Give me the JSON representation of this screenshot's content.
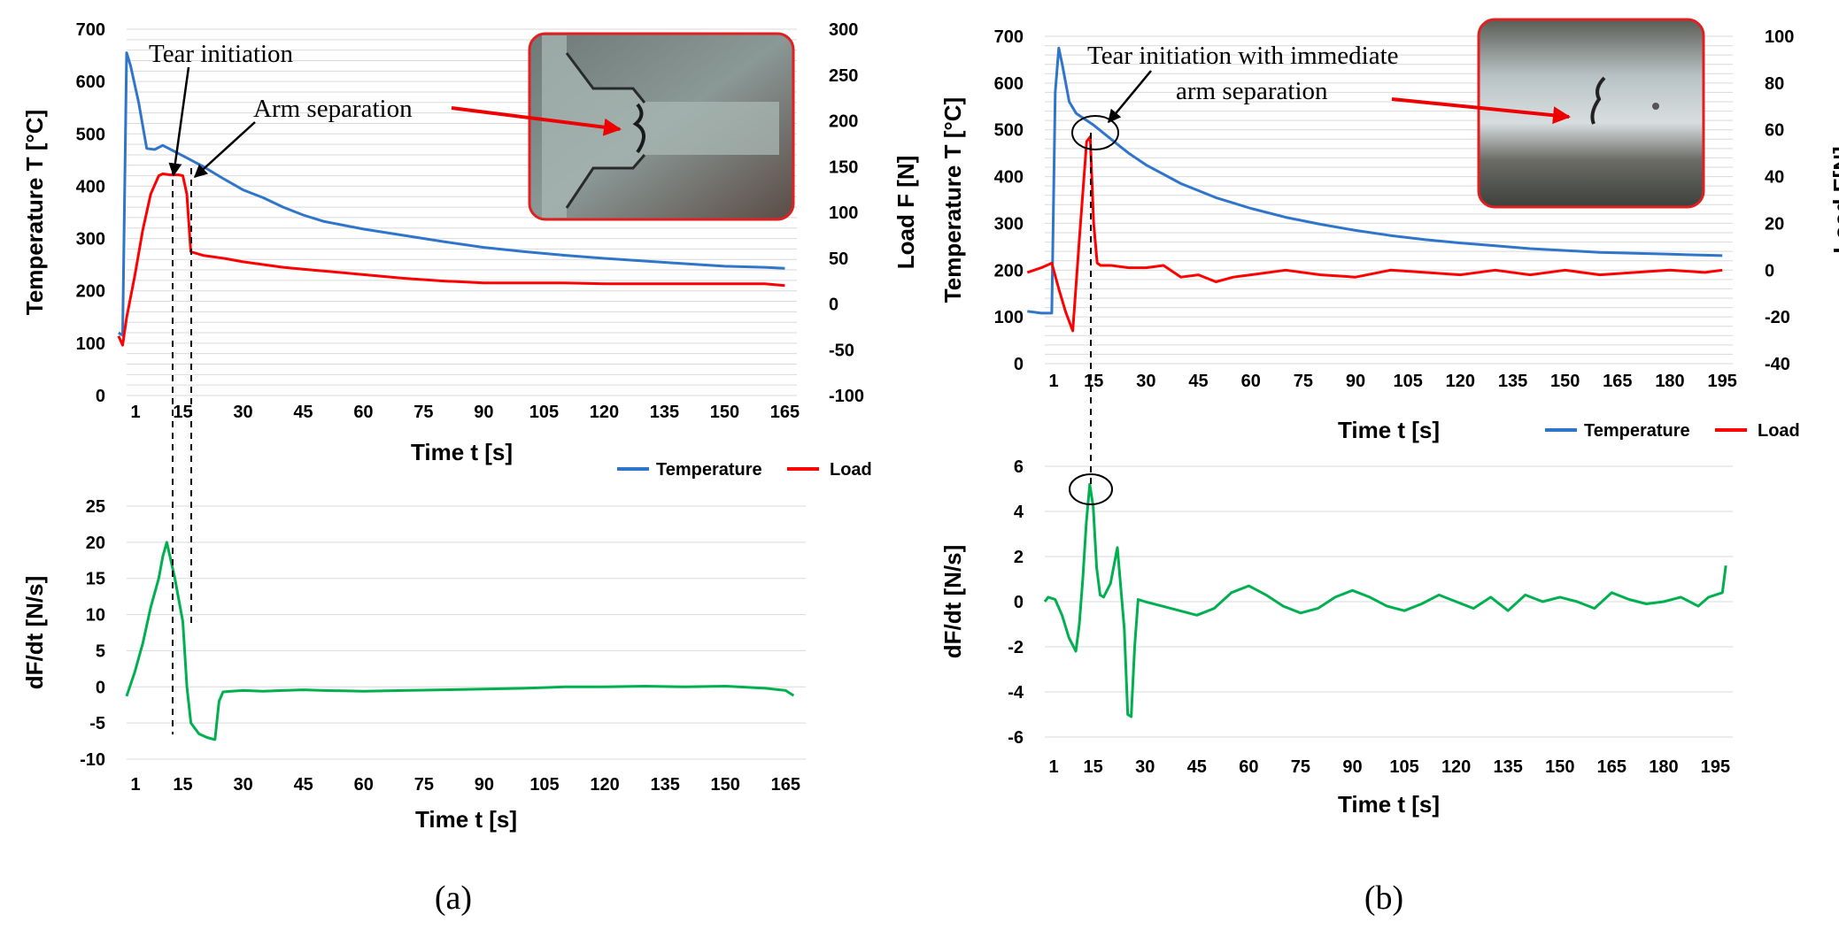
{
  "figure": {
    "panel_labels": [
      "(a)",
      "(b)"
    ]
  },
  "annotations": {
    "a_tear": "Tear initiation",
    "a_arm": "Arm separation",
    "b_tear_1": "Tear initiation with immediate",
    "b_tear_2": "arm separation"
  },
  "colors": {
    "temperature": "#2f75c9",
    "load": "#ff0000",
    "derivative": "#00b050",
    "arrow_red": "#ee0000"
  },
  "chart_data": [
    {
      "id": "a-top",
      "type": "line",
      "xlabel": "Time t [s]",
      "ylabel": "Temperature T [°C]",
      "y2label": "Load F [N]",
      "xlim": [
        1,
        168
      ],
      "ylim": [
        0,
        700
      ],
      "y2lim": [
        -100,
        300
      ],
      "xticks": [
        "1",
        "15",
        "30",
        "45",
        "60",
        "75",
        "90",
        "105",
        "120",
        "135",
        "150",
        "165"
      ],
      "yticks": [
        "0",
        "100",
        "200",
        "300",
        "400",
        "500",
        "600",
        "700"
      ],
      "y2ticks": [
        "-100",
        "-50",
        "0",
        "50",
        "100",
        "150",
        "200",
        "250",
        "300"
      ],
      "legend": [
        "Temperature",
        "Load"
      ],
      "series": [
        {
          "name": "Temperature",
          "axis": "left",
          "x": [
            -1,
            0,
            1,
            2,
            4,
            6,
            8,
            10,
            12,
            15,
            20,
            25,
            30,
            35,
            40,
            45,
            50,
            60,
            70,
            80,
            90,
            100,
            110,
            120,
            130,
            140,
            150,
            160,
            165
          ],
          "y": [
            120,
            115,
            655,
            630,
            560,
            472,
            470,
            478,
            470,
            458,
            438,
            415,
            393,
            378,
            360,
            345,
            333,
            318,
            306,
            294,
            283,
            275,
            268,
            262,
            257,
            252,
            247,
            245,
            243
          ]
        },
        {
          "name": "Load",
          "axis": "right",
          "x": [
            -1,
            0,
            1,
            3,
            5,
            7,
            9,
            10,
            12,
            14,
            15,
            16,
            17,
            20,
            25,
            30,
            35,
            40,
            45,
            50,
            60,
            70,
            80,
            90,
            100,
            110,
            120,
            130,
            140,
            150,
            160,
            165
          ],
          "y": [
            -35,
            -45,
            -15,
            30,
            80,
            120,
            140,
            142,
            141,
            141,
            140,
            120,
            57,
            53,
            50,
            46,
            43,
            40,
            38,
            36,
            32,
            28,
            25,
            23,
            23,
            23,
            22,
            22,
            22,
            22,
            22,
            20
          ]
        }
      ]
    },
    {
      "id": "a-bottom",
      "type": "line",
      "xlabel": "Time t [s]",
      "ylabel": "dF/dt [N/s]",
      "xlim": [
        1,
        170
      ],
      "ylim": [
        -10,
        25
      ],
      "xticks": [
        "1",
        "15",
        "30",
        "45",
        "60",
        "75",
        "90",
        "105",
        "120",
        "135",
        "150",
        "165"
      ],
      "yticks": [
        "-10",
        "-5",
        "0",
        "5",
        "10",
        "15",
        "20",
        "25"
      ],
      "series": [
        {
          "name": "dF/dt",
          "x": [
            1,
            3,
            5,
            7,
            9,
            10,
            11,
            13,
            15,
            16,
            17,
            19,
            21,
            23,
            24,
            25,
            27,
            30,
            35,
            40,
            45,
            50,
            60,
            70,
            80,
            90,
            100,
            110,
            120,
            130,
            140,
            150,
            160,
            165,
            167
          ],
          "y": [
            -1.3,
            2,
            6,
            11,
            15,
            18,
            20,
            15,
            9,
            0,
            -5,
            -6.5,
            -7,
            -7.3,
            -2,
            -0.7,
            -0.6,
            -0.5,
            -0.6,
            -0.5,
            -0.4,
            -0.5,
            -0.6,
            -0.5,
            -0.4,
            -0.3,
            -0.2,
            0,
            0,
            0.1,
            0,
            0.1,
            -0.2,
            -0.5,
            -1.2
          ]
        }
      ]
    },
    {
      "id": "b-top",
      "type": "line",
      "xlabel": "Time t [s]",
      "ylabel": "Temperature T [°C]",
      "y2label": "Load F[N]",
      "xlim": [
        1,
        198
      ],
      "ylim": [
        0,
        700
      ],
      "y2lim": [
        -40,
        100
      ],
      "xticks": [
        "1",
        "15",
        "30",
        "45",
        "60",
        "75",
        "90",
        "105",
        "120",
        "135",
        "150",
        "165",
        "180",
        "195"
      ],
      "yticks": [
        "0",
        "100",
        "200",
        "300",
        "400",
        "500",
        "600",
        "700"
      ],
      "y2ticks": [
        "-40",
        "-20",
        "0",
        "20",
        "40",
        "60",
        "80",
        "100"
      ],
      "legend": [
        "Temperature",
        "Load"
      ],
      "series": [
        {
          "name": "Temperature",
          "axis": "left",
          "x": [
            -4,
            0,
            3,
            4,
            5,
            6,
            8,
            10,
            12,
            15,
            20,
            25,
            30,
            40,
            50,
            60,
            70,
            80,
            90,
            100,
            110,
            120,
            130,
            140,
            150,
            160,
            170,
            180,
            190,
            195
          ],
          "y": [
            112,
            108,
            108,
            580,
            675,
            640,
            560,
            535,
            525,
            510,
            480,
            450,
            425,
            385,
            355,
            332,
            313,
            298,
            285,
            274,
            265,
            258,
            252,
            246,
            242,
            238,
            236,
            234,
            232,
            231
          ]
        },
        {
          "name": "Load",
          "axis": "right",
          "x": [
            -4,
            0,
            3,
            5,
            7,
            9,
            11,
            13,
            14,
            15,
            16,
            17,
            20,
            25,
            30,
            35,
            40,
            45,
            50,
            55,
            60,
            70,
            80,
            90,
            100,
            110,
            120,
            130,
            140,
            150,
            160,
            170,
            180,
            190,
            195
          ],
          "y": [
            -1,
            1,
            3,
            -8,
            -18,
            -26,
            15,
            55,
            57,
            20,
            3,
            2,
            2,
            1,
            1,
            2,
            -3,
            -2,
            -5,
            -3,
            -2,
            0,
            -2,
            -3,
            0,
            -1,
            -2,
            0,
            -2,
            0,
            -2,
            -1,
            0,
            -1,
            0
          ]
        }
      ]
    },
    {
      "id": "b-bottom",
      "type": "line",
      "xlabel": "Time t [s]",
      "ylabel": "dF/dt [N/s]",
      "xlim": [
        1,
        200
      ],
      "ylim": [
        -6,
        6
      ],
      "xticks": [
        "1",
        "15",
        "30",
        "45",
        "60",
        "75",
        "90",
        "105",
        "120",
        "135",
        "150",
        "165",
        "180",
        "195"
      ],
      "yticks": [
        "-6",
        "-4",
        "-2",
        "0",
        "2",
        "4",
        "6"
      ],
      "series": [
        {
          "name": "dF/dt",
          "x": [
            1,
            2,
            4,
            6,
            8,
            10,
            11,
            12,
            13,
            14,
            15,
            16,
            17,
            18,
            20,
            22,
            24,
            25,
            26,
            27,
            28,
            30,
            35,
            40,
            45,
            50,
            55,
            60,
            65,
            70,
            75,
            80,
            85,
            90,
            95,
            100,
            105,
            110,
            115,
            120,
            125,
            130,
            135,
            140,
            145,
            150,
            155,
            160,
            165,
            170,
            175,
            180,
            185,
            190,
            193,
            197,
            198
          ],
          "y": [
            0,
            0.2,
            0.1,
            -0.6,
            -1.6,
            -2.2,
            -1,
            1,
            3.5,
            5.2,
            4.2,
            1.5,
            0.3,
            0.2,
            0.8,
            2.4,
            -1.2,
            -5,
            -5.1,
            -2,
            0.1,
            0,
            -0.2,
            -0.4,
            -0.6,
            -0.3,
            0.4,
            0.7,
            0.3,
            -0.2,
            -0.5,
            -0.3,
            0.2,
            0.5,
            0.2,
            -0.2,
            -0.4,
            -0.1,
            0.3,
            0,
            -0.3,
            0.2,
            -0.4,
            0.3,
            0,
            0.2,
            0,
            -0.3,
            0.4,
            0.1,
            -0.1,
            0,
            0.2,
            -0.2,
            0.2,
            0.4,
            1.6
          ]
        }
      ]
    }
  ]
}
